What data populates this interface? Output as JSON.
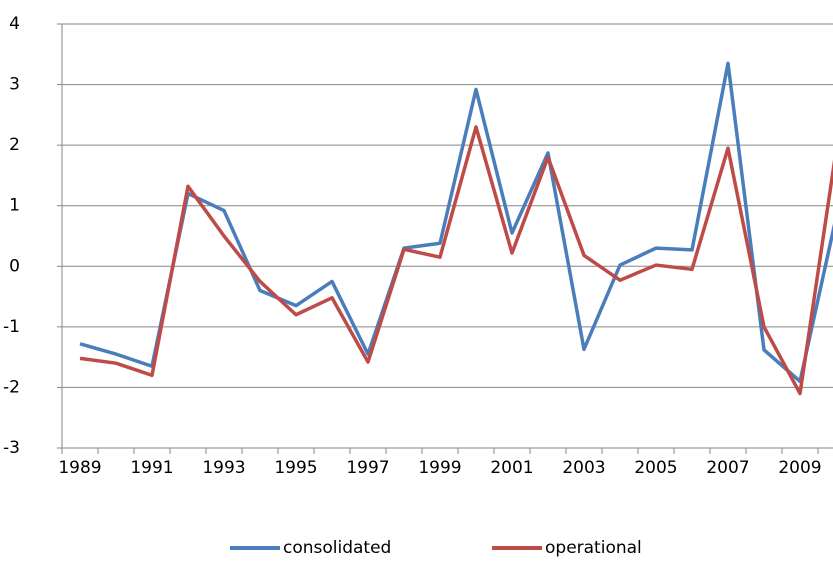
{
  "chart_data": {
    "type": "line",
    "categories": [
      "1989",
      null,
      "1991",
      null,
      "1993",
      null,
      "1995",
      null,
      "1997",
      null,
      "1999",
      null,
      "2001",
      null,
      "2003",
      null,
      "2005",
      null,
      "2007",
      null,
      "2009",
      null
    ],
    "series": [
      {
        "name": "consolidated",
        "color": "#4a7ebb",
        "values": [
          -1.28,
          -1.45,
          -1.65,
          1.2,
          0.92,
          -0.4,
          -0.65,
          -0.25,
          -1.45,
          0.3,
          0.38,
          2.92,
          0.55,
          1.87,
          -1.37,
          0.02,
          0.3,
          0.27,
          3.35,
          -1.38,
          -1.9,
          0.8
        ]
      },
      {
        "name": "operational",
        "color": "#be4b48",
        "values": [
          -1.52,
          -1.6,
          -1.8,
          1.32,
          0.5,
          -0.25,
          -0.8,
          -0.52,
          -1.58,
          0.28,
          0.15,
          2.3,
          0.22,
          1.8,
          0.18,
          -0.23,
          0.02,
          -0.05,
          1.95,
          -1.0,
          -2.1,
          1.9
        ]
      }
    ],
    "ylim": [
      -3,
      4
    ],
    "yticks": [
      -3,
      -2,
      -1,
      0,
      1,
      2,
      3,
      4
    ],
    "grid": true,
    "legend": "bottom"
  }
}
